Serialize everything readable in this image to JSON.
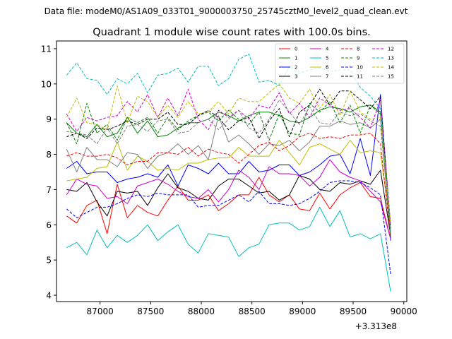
{
  "chart_data": {
    "type": "line",
    "subtitle": "Data file: modeM0/AS1A09_033T01_9000003750_25745cztM0_level2_quad_clean.evt",
    "title": "Quadrant 1 module wise count rates with 100.0s bins.",
    "xlabel": "",
    "ylabel": "",
    "x_offset_label": "+3.313e8",
    "xlim": [
      86570,
      90030
    ],
    "ylim": [
      3.82,
      11.22
    ],
    "x_ticks": [
      87000,
      87500,
      88000,
      88500,
      89000,
      89500,
      90000
    ],
    "x_tick_labels": [
      "87000",
      "87500",
      "88000",
      "88500",
      "89000",
      "89500",
      "90000"
    ],
    "y_ticks": [
      4,
      5,
      6,
      7,
      8,
      9,
      10,
      11
    ],
    "y_tick_labels": [
      "4",
      "5",
      "6",
      "7",
      "8",
      "9",
      "10",
      "11"
    ],
    "legend_position": "top-right",
    "x": [
      86670,
      86770,
      86870,
      86970,
      87070,
      87170,
      87270,
      87370,
      87470,
      87570,
      87670,
      87770,
      87870,
      87970,
      88070,
      88170,
      88270,
      88370,
      88470,
      88570,
      88670,
      88770,
      88870,
      88970,
      89070,
      89170,
      89270,
      89370,
      89470,
      89570,
      89670,
      89770,
      89870
    ],
    "series": [
      {
        "name": "0",
        "color": "#ff0000",
        "dash": "solid",
        "values": [
          6.25,
          6.05,
          6.55,
          6.7,
          5.75,
          7.15,
          6.2,
          6.55,
          6.35,
          6.25,
          6.7,
          7.1,
          6.7,
          6.7,
          6.85,
          6.4,
          6.6,
          6.85,
          6.85,
          7.35,
          6.85,
          6.65,
          6.85,
          6.45,
          6.4,
          6.9,
          6.45,
          6.85,
          7.05,
          7.2,
          6.8,
          6.75,
          5.6
        ]
      },
      {
        "name": "1",
        "color": "#008000",
        "dash": "solid",
        "values": [
          8.9,
          8.6,
          8.5,
          8.85,
          8.5,
          8.6,
          9.05,
          8.6,
          8.95,
          8.5,
          8.55,
          8.75,
          8.9,
          8.9,
          9.0,
          9.2,
          9.1,
          8.95,
          9.1,
          9.2,
          9.2,
          9.1,
          8.95,
          8.9,
          9.05,
          9.25,
          9.35,
          9.3,
          9.2,
          9.35,
          9.4,
          9.2,
          5.6
        ]
      },
      {
        "name": "2",
        "color": "#0000ff",
        "dash": "solid",
        "values": [
          7.6,
          7.8,
          7.45,
          7.5,
          7.5,
          7.2,
          7.3,
          7.35,
          7.45,
          7.35,
          7.7,
          7.1,
          7.7,
          7.6,
          7.45,
          7.75,
          7.45,
          7.45,
          7.8,
          7.5,
          7.55,
          7.7,
          7.7,
          7.4,
          7.5,
          7.7,
          7.95,
          8.0,
          7.45,
          8.45,
          7.4,
          9.7,
          5.55
        ]
      },
      {
        "name": "3",
        "color": "#000000",
        "dash": "solid",
        "values": [
          7.0,
          6.95,
          7.2,
          6.65,
          6.25,
          6.95,
          6.9,
          6.95,
          6.55,
          7.05,
          7.45,
          7.05,
          6.95,
          6.75,
          6.7,
          7.1,
          7.3,
          7.3,
          7.1,
          6.9,
          6.95,
          6.7,
          6.85,
          7.4,
          7.3,
          7.0,
          6.95,
          7.2,
          7.15,
          7.25,
          7.15,
          7.55,
          5.7
        ]
      },
      {
        "name": "4",
        "color": "#cc00cc",
        "dash": "solid",
        "values": [
          6.85,
          7.3,
          7.15,
          7.1,
          6.75,
          6.8,
          6.6,
          7.1,
          7.2,
          7.3,
          7.15,
          6.95,
          6.8,
          6.75,
          7.0,
          6.65,
          7.0,
          7.55,
          7.35,
          7.0,
          7.65,
          7.45,
          7.45,
          7.4,
          7.1,
          7.35,
          7.85,
          7.5,
          7.35,
          7.25,
          6.95,
          6.65,
          5.6
        ]
      },
      {
        "name": "5",
        "color": "#00bfbf",
        "dash": "solid",
        "values": [
          5.35,
          5.5,
          5.15,
          5.85,
          5.35,
          5.7,
          5.5,
          5.7,
          6.0,
          5.55,
          5.8,
          6.0,
          5.45,
          5.2,
          5.75,
          5.7,
          5.65,
          5.1,
          5.35,
          5.45,
          6.0,
          6.05,
          6.05,
          5.85,
          5.95,
          6.5,
          5.95,
          6.4,
          5.65,
          5.75,
          5.6,
          5.75,
          4.1
        ]
      },
      {
        "name": "6",
        "color": "#bfbf00",
        "dash": "solid",
        "values": [
          7.25,
          7.3,
          7.35,
          7.6,
          7.65,
          8.35,
          7.55,
          7.95,
          7.8,
          7.55,
          7.6,
          7.55,
          7.75,
          7.75,
          7.85,
          7.9,
          7.9,
          8.2,
          7.95,
          7.95,
          7.95,
          8.4,
          8.05,
          7.7,
          8.2,
          8.3,
          8.15,
          8.0,
          8.4,
          8.05,
          8.1,
          8.05,
          5.9
        ]
      },
      {
        "name": "7",
        "color": "#808080",
        "dash": "solid",
        "values": [
          8.15,
          7.5,
          8.2,
          7.85,
          7.85,
          7.65,
          8.05,
          8.0,
          7.6,
          7.95,
          8.05,
          8.3,
          8.0,
          8.25,
          7.85,
          9.1,
          8.35,
          8.55,
          8.3,
          8.0,
          8.3,
          8.25,
          8.4,
          8.1,
          8.35,
          8.8,
          8.8,
          8.95,
          8.85,
          8.9,
          8.75,
          9.0,
          5.65
        ]
      },
      {
        "name": "8",
        "color": "#ff0000",
        "dash": "dashed",
        "values": [
          7.95,
          8.05,
          7.95,
          7.95,
          8.0,
          7.9,
          7.7,
          7.8,
          7.8,
          8.05,
          8.05,
          8.0,
          8.2,
          7.95,
          8.15,
          8.05,
          8.0,
          7.75,
          8.0,
          8.25,
          8.35,
          8.1,
          8.25,
          8.5,
          8.6,
          8.45,
          8.5,
          8.45,
          8.55,
          8.55,
          8.6,
          8.3,
          5.65
        ]
      },
      {
        "name": "9",
        "color": "#008000",
        "dash": "dashed",
        "values": [
          8.9,
          8.3,
          9.45,
          8.6,
          8.85,
          8.4,
          9.05,
          8.9,
          9.05,
          8.6,
          9.05,
          8.7,
          8.95,
          9.1,
          9.2,
          8.95,
          9.25,
          9.0,
          8.85,
          9.2,
          8.4,
          9.15,
          8.6,
          8.55,
          9.45,
          9.2,
          9.5,
          8.9,
          9.4,
          8.6,
          9.4,
          9.15,
          5.65
        ]
      },
      {
        "name": "10",
        "color": "#0000ff",
        "dash": "dashed",
        "values": [
          6.45,
          6.2,
          6.35,
          6.5,
          6.5,
          6.6,
          6.75,
          6.85,
          6.8,
          6.9,
          6.85,
          6.85,
          6.85,
          6.5,
          6.55,
          6.55,
          6.7,
          6.85,
          6.65,
          6.95,
          6.6,
          6.6,
          6.55,
          6.6,
          6.75,
          6.95,
          7.2,
          7.25,
          7.25,
          7.2,
          7.05,
          6.85,
          4.6
        ]
      },
      {
        "name": "11",
        "color": "#000000",
        "dash": "dashed",
        "values": [
          8.5,
          8.6,
          8.45,
          8.75,
          8.7,
          8.8,
          8.95,
          8.85,
          9.0,
          9.0,
          9.2,
          8.85,
          8.85,
          9.1,
          9.25,
          9.05,
          8.7,
          8.95,
          9.05,
          8.45,
          8.95,
          9.3,
          8.5,
          9.2,
          9.4,
          9.85,
          9.4,
          9.8,
          9.8,
          9.55,
          9.3,
          9.65,
          5.9
        ]
      },
      {
        "name": "12",
        "color": "#cc00cc",
        "dash": "dashed",
        "values": [
          9.15,
          8.65,
          9.05,
          8.95,
          9.05,
          9.1,
          9.5,
          9.2,
          9.7,
          9.05,
          9.6,
          9.1,
          9.85,
          9.0,
          8.7,
          9.25,
          9.05,
          9.25,
          9.0,
          9.4,
          9.3,
          9.75,
          9.15,
          9.45,
          9.05,
          9.6,
          9.4,
          9.25,
          9.3,
          9.05,
          8.75,
          9.55,
          6.0
        ]
      },
      {
        "name": "13",
        "color": "#00bfbf",
        "dash": "dashed",
        "values": [
          10.25,
          10.6,
          10.15,
          10.1,
          9.7,
          10.15,
          10.0,
          10.3,
          9.75,
          10.25,
          10.3,
          10.45,
          10.05,
          10.5,
          10.5,
          9.95,
          10.15,
          10.7,
          10.85,
          10.05,
          10.1,
          9.95,
          10.5,
          10.3,
          10.4,
          10.45,
          10.35,
          10.4,
          10.4,
          9.9,
          9.65,
          9.3,
          5.8
        ]
      },
      {
        "name": "14",
        "color": "#bfbf00",
        "dash": "dashed",
        "values": [
          9.05,
          9.6,
          8.9,
          8.85,
          8.7,
          9.95,
          8.9,
          9.65,
          9.5,
          9.05,
          9.4,
          9.05,
          9.5,
          9.15,
          9.2,
          9.5,
          9.15,
          9.6,
          9.5,
          9.5,
          9.75,
          10.0,
          9.6,
          9.45,
          9.85,
          9.3,
          9.7,
          9.1,
          9.8,
          9.2,
          9.0,
          9.05,
          6.05
        ]
      },
      {
        "name": "15",
        "color": "#808080",
        "dash": "dashed",
        "values": [
          8.65,
          8.6,
          8.55,
          8.3,
          8.75,
          8.3,
          8.8,
          8.85,
          8.65,
          8.95,
          9.0,
          8.6,
          8.65,
          8.9,
          9.0,
          8.7,
          9.0,
          9.25,
          8.75,
          8.6,
          9.0,
          9.55,
          9.2,
          8.85,
          9.35,
          8.9,
          8.85,
          9.2,
          9.1,
          9.15,
          8.95,
          8.8,
          5.85
        ]
      }
    ]
  }
}
